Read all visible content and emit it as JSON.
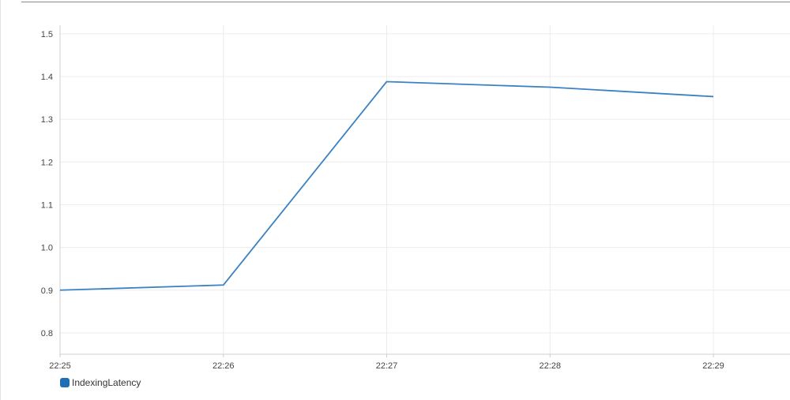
{
  "chart_data": {
    "type": "line",
    "x": [
      "22:25",
      "22:26",
      "22:27",
      "22:28",
      "22:29"
    ],
    "series": [
      {
        "name": "IndexingLatency",
        "color": "#3a82c2",
        "values": [
          0.9,
          0.912,
          1.388,
          1.375,
          1.353
        ]
      }
    ],
    "yticks": [
      "0.8",
      "0.9",
      "1.0",
      "1.1",
      "1.2",
      "1.3",
      "1.4",
      "1.5"
    ],
    "ylim": [
      0.75,
      1.52
    ],
    "grid": true,
    "legend_position": "bottom-left"
  },
  "legend": {
    "label": "IndexingLatency",
    "swatch_color": "#1f6eb4"
  }
}
